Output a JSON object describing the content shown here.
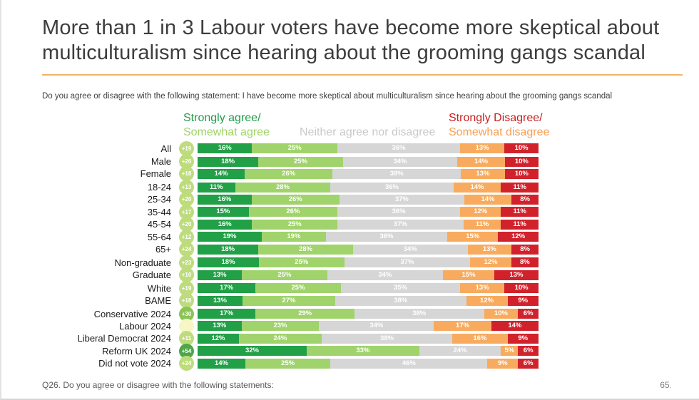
{
  "slide": {
    "title": "More than 1 in 3 Labour voters have become more skeptical about multiculturalism since hearing about the grooming gangs scandal",
    "subtitle": "Do you agree or disagree with the following statement: I have become more skeptical about multiculturalism since hearing about the grooming gangs scandal",
    "footer_question": "Q26. Do you agree or disagree with the following statements:",
    "page_number": "65",
    "page_number_suffix": "."
  },
  "legend": {
    "agree_line1": "Strongly agree/",
    "agree_line2": "Somewhat agree",
    "neither": "Neither agree nor disagree",
    "disagree_line1": "Strongly Disagree/",
    "disagree_line2": "Somewhat disagree"
  },
  "colors": {
    "strongly_agree": "#21a047",
    "somewhat_agree": "#a0d36b",
    "neither": "#d6d6d6",
    "somewhat_disagree": "#f8ab5e",
    "strongly_disagree": "#d1222c",
    "legend_strongly_agree": "#1e9c47",
    "legend_somewhat_agree": "#9fd368",
    "legend_neither": "#c9c9c9",
    "legend_strongly_disagree": "#c92020",
    "legend_somewhat_disagree": "#f5a055",
    "divider": "#f2b264",
    "page_dot": "#e8923e",
    "badge_light": "#bedc7d",
    "badge_medium": "#8cc355",
    "badge_dark": "#4fa649",
    "badge_pale": "#f6f7c5"
  },
  "chart_data": {
    "type": "bar",
    "orientation": "horizontal_stacked",
    "unit": "%",
    "series": [
      "Strongly agree",
      "Somewhat agree",
      "Neither agree nor disagree",
      "Somewhat disagree",
      "Strongly disagree"
    ],
    "rows": [
      {
        "label": "All",
        "net": "+19",
        "badge": "light",
        "values": [
          16,
          25,
          36,
          13,
          10
        ],
        "group": 0
      },
      {
        "label": "Male",
        "net": "+20",
        "badge": "light",
        "values": [
          18,
          25,
          34,
          14,
          10
        ],
        "group": 1
      },
      {
        "label": "Female",
        "net": "+18",
        "badge": "light",
        "values": [
          14,
          26,
          38,
          13,
          10
        ],
        "group": 1
      },
      {
        "label": "18-24",
        "net": "+13",
        "badge": "light",
        "values": [
          11,
          28,
          36,
          14,
          11
        ],
        "group": 2
      },
      {
        "label": "25-34",
        "net": "+20",
        "badge": "light",
        "values": [
          16,
          26,
          37,
          14,
          8
        ],
        "group": 2
      },
      {
        "label": "35-44",
        "net": "+17",
        "badge": "light",
        "values": [
          15,
          26,
          36,
          12,
          11
        ],
        "group": 2
      },
      {
        "label": "45-54",
        "net": "+20",
        "badge": "light",
        "values": [
          16,
          25,
          37,
          11,
          11
        ],
        "group": 2
      },
      {
        "label": "55-64",
        "net": "+12",
        "badge": "light",
        "values": [
          19,
          19,
          36,
          15,
          12
        ],
        "group": 2
      },
      {
        "label": "65+",
        "net": "+24",
        "badge": "light",
        "values": [
          18,
          28,
          34,
          13,
          8
        ],
        "group": 2
      },
      {
        "label": "Non-graduate",
        "net": "+23",
        "badge": "light",
        "values": [
          18,
          25,
          37,
          12,
          8
        ],
        "group": 3
      },
      {
        "label": "Graduate",
        "net": "+10",
        "badge": "light",
        "values": [
          13,
          25,
          34,
          15,
          13
        ],
        "group": 3
      },
      {
        "label": "White",
        "net": "+19",
        "badge": "light",
        "values": [
          17,
          25,
          35,
          13,
          10
        ],
        "group": 4
      },
      {
        "label": "BAME",
        "net": "+18",
        "badge": "light",
        "values": [
          13,
          27,
          38,
          12,
          9
        ],
        "group": 4
      },
      {
        "label": "Conservative 2024",
        "net": "+30",
        "badge": "medium",
        "values": [
          17,
          29,
          38,
          10,
          6
        ],
        "group": 5
      },
      {
        "label": "Labour 2024",
        "net": "",
        "badge": "pale",
        "values": [
          13,
          23,
          34,
          17,
          14
        ],
        "group": 5
      },
      {
        "label": "Liberal Democrat 2024",
        "net": "+11",
        "badge": "light",
        "values": [
          12,
          24,
          38,
          16,
          9
        ],
        "group": 5
      },
      {
        "label": "Reform UK 2024",
        "net": "+54",
        "badge": "dark",
        "values": [
          32,
          33,
          24,
          5,
          6
        ],
        "group": 5
      },
      {
        "label": "Did not vote 2024",
        "net": "+24",
        "badge": "light",
        "values": [
          14,
          25,
          46,
          9,
          6
        ],
        "group": 5
      }
    ]
  }
}
